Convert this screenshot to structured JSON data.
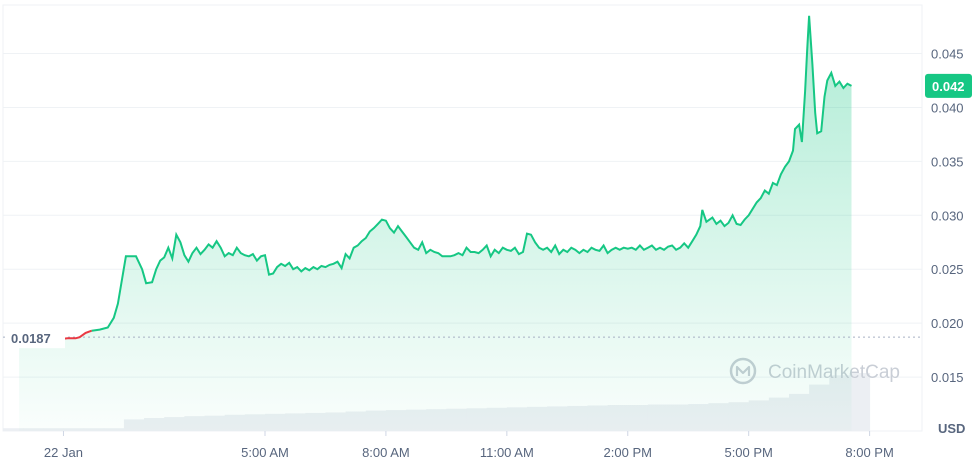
{
  "chart_data": {
    "type": "area",
    "currency_label": "USD",
    "watermark": "CoinMarketCap",
    "open_price": 0.0187,
    "open_price_label": "0.0187",
    "current_price": 0.042,
    "current_price_label": "0.042",
    "colors": {
      "up": "#16c784",
      "down": "#ea3943",
      "grid": "#eff2f5",
      "text": "#58667e"
    },
    "ylim": [
      0.01,
      0.0495
    ],
    "y_ticks": [
      {
        "value": 0.015,
        "label": "0.015"
      },
      {
        "value": 0.02,
        "label": "0.020"
      },
      {
        "value": 0.025,
        "label": "0.025"
      },
      {
        "value": 0.03,
        "label": "0.030"
      },
      {
        "value": 0.035,
        "label": "0.035"
      },
      {
        "value": 0.04,
        "label": "0.040"
      },
      {
        "value": 0.045,
        "label": "0.045"
      }
    ],
    "xlim": [
      -1.5,
      21.3
    ],
    "x_ticks": [
      {
        "value": 0,
        "label": "22 Jan"
      },
      {
        "value": 5,
        "label": "5:00 AM"
      },
      {
        "value": 8,
        "label": "8:00 AM"
      },
      {
        "value": 11,
        "label": "11:00 AM"
      },
      {
        "value": 14,
        "label": "2:00 PM"
      },
      {
        "value": 17,
        "label": "5:00 PM"
      },
      {
        "value": 20,
        "label": "8:00 PM"
      }
    ],
    "series": [
      {
        "values": [
          [
            -1.1,
            0.0188
          ],
          [
            -0.9,
            0.0186
          ],
          [
            -0.7,
            0.0187
          ],
          [
            -0.5,
            0.0185
          ],
          [
            -0.3,
            0.0186
          ],
          [
            -0.1,
            0.0185
          ],
          [
            0.1,
            0.0186
          ],
          [
            0.3,
            0.0186
          ],
          [
            0.4,
            0.0187
          ],
          [
            0.55,
            0.0191
          ],
          [
            0.7,
            0.0193
          ],
          [
            0.9,
            0.0194
          ],
          [
            1.1,
            0.0196
          ],
          [
            1.25,
            0.0205
          ],
          [
            1.35,
            0.0218
          ],
          [
            1.45,
            0.024
          ],
          [
            1.55,
            0.0262
          ],
          [
            1.8,
            0.0262
          ],
          [
            1.95,
            0.025
          ],
          [
            2.05,
            0.0237
          ],
          [
            2.2,
            0.0238
          ],
          [
            2.3,
            0.025
          ],
          [
            2.4,
            0.0258
          ],
          [
            2.5,
            0.0261
          ],
          [
            2.6,
            0.027
          ],
          [
            2.7,
            0.026
          ],
          [
            2.8,
            0.0282
          ],
          [
            2.9,
            0.0275
          ],
          [
            3.0,
            0.0263
          ],
          [
            3.1,
            0.0257
          ],
          [
            3.2,
            0.0265
          ],
          [
            3.3,
            0.027
          ],
          [
            3.4,
            0.0264
          ],
          [
            3.5,
            0.0268
          ],
          [
            3.6,
            0.0273
          ],
          [
            3.7,
            0.027
          ],
          [
            3.8,
            0.0276
          ],
          [
            3.9,
            0.027
          ],
          [
            4.0,
            0.0262
          ],
          [
            4.1,
            0.0265
          ],
          [
            4.2,
            0.0263
          ],
          [
            4.3,
            0.027
          ],
          [
            4.4,
            0.0265
          ],
          [
            4.5,
            0.0263
          ],
          [
            4.6,
            0.0262
          ],
          [
            4.7,
            0.0264
          ],
          [
            4.8,
            0.0258
          ],
          [
            4.9,
            0.0262
          ],
          [
            5.0,
            0.0263
          ],
          [
            5.1,
            0.0245
          ],
          [
            5.2,
            0.0246
          ],
          [
            5.3,
            0.0252
          ],
          [
            5.4,
            0.0255
          ],
          [
            5.5,
            0.0253
          ],
          [
            5.6,
            0.0256
          ],
          [
            5.7,
            0.025
          ],
          [
            5.8,
            0.0252
          ],
          [
            5.9,
            0.0248
          ],
          [
            6.0,
            0.0251
          ],
          [
            6.1,
            0.0249
          ],
          [
            6.2,
            0.0252
          ],
          [
            6.3,
            0.025
          ],
          [
            6.4,
            0.0253
          ],
          [
            6.5,
            0.0252
          ],
          [
            6.6,
            0.0254
          ],
          [
            6.7,
            0.0255
          ],
          [
            6.8,
            0.0257
          ],
          [
            6.9,
            0.0251
          ],
          [
            7.0,
            0.0264
          ],
          [
            7.1,
            0.026
          ],
          [
            7.2,
            0.027
          ],
          [
            7.3,
            0.0272
          ],
          [
            7.4,
            0.0276
          ],
          [
            7.5,
            0.0279
          ],
          [
            7.6,
            0.0285
          ],
          [
            7.7,
            0.0288
          ],
          [
            7.8,
            0.0292
          ],
          [
            7.9,
            0.0296
          ],
          [
            8.0,
            0.0295
          ],
          [
            8.1,
            0.0288
          ],
          [
            8.2,
            0.0284
          ],
          [
            8.3,
            0.029
          ],
          [
            8.4,
            0.0285
          ],
          [
            8.5,
            0.028
          ],
          [
            8.6,
            0.0275
          ],
          [
            8.7,
            0.027
          ],
          [
            8.8,
            0.0268
          ],
          [
            8.9,
            0.0275
          ],
          [
            9.0,
            0.0265
          ],
          [
            9.1,
            0.0268
          ],
          [
            9.2,
            0.0266
          ],
          [
            9.3,
            0.0265
          ],
          [
            9.4,
            0.0262
          ],
          [
            9.5,
            0.0262
          ],
          [
            9.6,
            0.0262
          ],
          [
            9.7,
            0.0263
          ],
          [
            9.8,
            0.0265
          ],
          [
            9.9,
            0.0263
          ],
          [
            10.0,
            0.027
          ],
          [
            10.1,
            0.0266
          ],
          [
            10.2,
            0.0266
          ],
          [
            10.3,
            0.0265
          ],
          [
            10.4,
            0.0268
          ],
          [
            10.5,
            0.0272
          ],
          [
            10.6,
            0.0262
          ],
          [
            10.7,
            0.0268
          ],
          [
            10.8,
            0.0265
          ],
          [
            10.9,
            0.027
          ],
          [
            11.0,
            0.0268
          ],
          [
            11.1,
            0.0267
          ],
          [
            11.2,
            0.027
          ],
          [
            11.3,
            0.0264
          ],
          [
            11.4,
            0.0266
          ],
          [
            11.5,
            0.0283
          ],
          [
            11.6,
            0.0282
          ],
          [
            11.7,
            0.0275
          ],
          [
            11.8,
            0.027
          ],
          [
            11.9,
            0.0268
          ],
          [
            12.0,
            0.027
          ],
          [
            12.1,
            0.0266
          ],
          [
            12.2,
            0.0272
          ],
          [
            12.3,
            0.0264
          ],
          [
            12.4,
            0.0268
          ],
          [
            12.5,
            0.0266
          ],
          [
            12.6,
            0.027
          ],
          [
            12.7,
            0.0268
          ],
          [
            12.8,
            0.0265
          ],
          [
            12.9,
            0.0268
          ],
          [
            13.0,
            0.0266
          ],
          [
            13.1,
            0.027
          ],
          [
            13.2,
            0.0268
          ],
          [
            13.3,
            0.0267
          ],
          [
            13.4,
            0.0272
          ],
          [
            13.5,
            0.0265
          ],
          [
            13.6,
            0.0268
          ],
          [
            13.7,
            0.027
          ],
          [
            13.8,
            0.0268
          ],
          [
            13.9,
            0.027
          ],
          [
            14.0,
            0.0269
          ],
          [
            14.1,
            0.027
          ],
          [
            14.2,
            0.0268
          ],
          [
            14.3,
            0.0272
          ],
          [
            14.4,
            0.0268
          ],
          [
            14.5,
            0.027
          ],
          [
            14.6,
            0.0272
          ],
          [
            14.7,
            0.0268
          ],
          [
            14.8,
            0.027
          ],
          [
            14.9,
            0.0268
          ],
          [
            15.0,
            0.0271
          ],
          [
            15.1,
            0.0272
          ],
          [
            15.2,
            0.0268
          ],
          [
            15.3,
            0.027
          ],
          [
            15.4,
            0.0274
          ],
          [
            15.5,
            0.027
          ],
          [
            15.6,
            0.0276
          ],
          [
            15.7,
            0.0282
          ],
          [
            15.8,
            0.029
          ],
          [
            15.85,
            0.0305
          ],
          [
            15.95,
            0.0294
          ],
          [
            16.1,
            0.0298
          ],
          [
            16.2,
            0.0292
          ],
          [
            16.3,
            0.0295
          ],
          [
            16.4,
            0.029
          ],
          [
            16.5,
            0.0293
          ],
          [
            16.6,
            0.03
          ],
          [
            16.7,
            0.0292
          ],
          [
            16.8,
            0.0291
          ],
          [
            16.9,
            0.0296
          ],
          [
            17.0,
            0.03
          ],
          [
            17.1,
            0.0306
          ],
          [
            17.2,
            0.0312
          ],
          [
            17.3,
            0.0316
          ],
          [
            17.4,
            0.0323
          ],
          [
            17.5,
            0.032
          ],
          [
            17.6,
            0.033
          ],
          [
            17.7,
            0.0328
          ],
          [
            17.8,
            0.0338
          ],
          [
            17.9,
            0.0345
          ],
          [
            18.0,
            0.035
          ],
          [
            18.1,
            0.036
          ],
          [
            18.15,
            0.038
          ],
          [
            18.25,
            0.0384
          ],
          [
            18.32,
            0.0368
          ],
          [
            18.4,
            0.0415
          ],
          [
            18.45,
            0.0452
          ],
          [
            18.5,
            0.0485
          ],
          [
            18.58,
            0.044
          ],
          [
            18.65,
            0.0395
          ],
          [
            18.7,
            0.0376
          ],
          [
            18.8,
            0.0378
          ],
          [
            18.88,
            0.041
          ],
          [
            18.95,
            0.0425
          ],
          [
            19.05,
            0.0432
          ],
          [
            19.15,
            0.042
          ],
          [
            19.25,
            0.0424
          ],
          [
            19.35,
            0.0418
          ],
          [
            19.45,
            0.0422
          ],
          [
            19.55,
            0.042
          ]
        ]
      }
    ],
    "volume": {
      "type": "bar",
      "values": [
        [
          -1.5,
          0.06
        ],
        [
          -1.0,
          0.06
        ],
        [
          -0.5,
          0.06
        ],
        [
          0.0,
          0.06
        ],
        [
          0.5,
          0.06
        ],
        [
          1.0,
          0.06
        ],
        [
          1.5,
          0.25
        ],
        [
          2.0,
          0.28
        ],
        [
          2.5,
          0.3
        ],
        [
          3.0,
          0.32
        ],
        [
          3.5,
          0.33
        ],
        [
          4.0,
          0.35
        ],
        [
          4.5,
          0.36
        ],
        [
          5.0,
          0.37
        ],
        [
          5.5,
          0.38
        ],
        [
          6.0,
          0.39
        ],
        [
          6.5,
          0.4
        ],
        [
          7.0,
          0.42
        ],
        [
          7.5,
          0.44
        ],
        [
          8.0,
          0.45
        ],
        [
          8.5,
          0.46
        ],
        [
          9.0,
          0.47
        ],
        [
          9.5,
          0.48
        ],
        [
          10.0,
          0.49
        ],
        [
          10.5,
          0.5
        ],
        [
          11.0,
          0.51
        ],
        [
          11.5,
          0.52
        ],
        [
          12.0,
          0.53
        ],
        [
          12.5,
          0.54
        ],
        [
          13.0,
          0.55
        ],
        [
          13.5,
          0.56
        ],
        [
          14.0,
          0.56
        ],
        [
          14.5,
          0.57
        ],
        [
          15.0,
          0.57
        ],
        [
          15.5,
          0.58
        ],
        [
          16.0,
          0.6
        ],
        [
          16.5,
          0.62
        ],
        [
          17.0,
          0.66
        ],
        [
          17.5,
          0.72
        ],
        [
          18.0,
          0.8
        ],
        [
          18.5,
          1.0
        ],
        [
          19.0,
          1.2
        ],
        [
          19.5,
          1.25
        ]
      ]
    }
  }
}
